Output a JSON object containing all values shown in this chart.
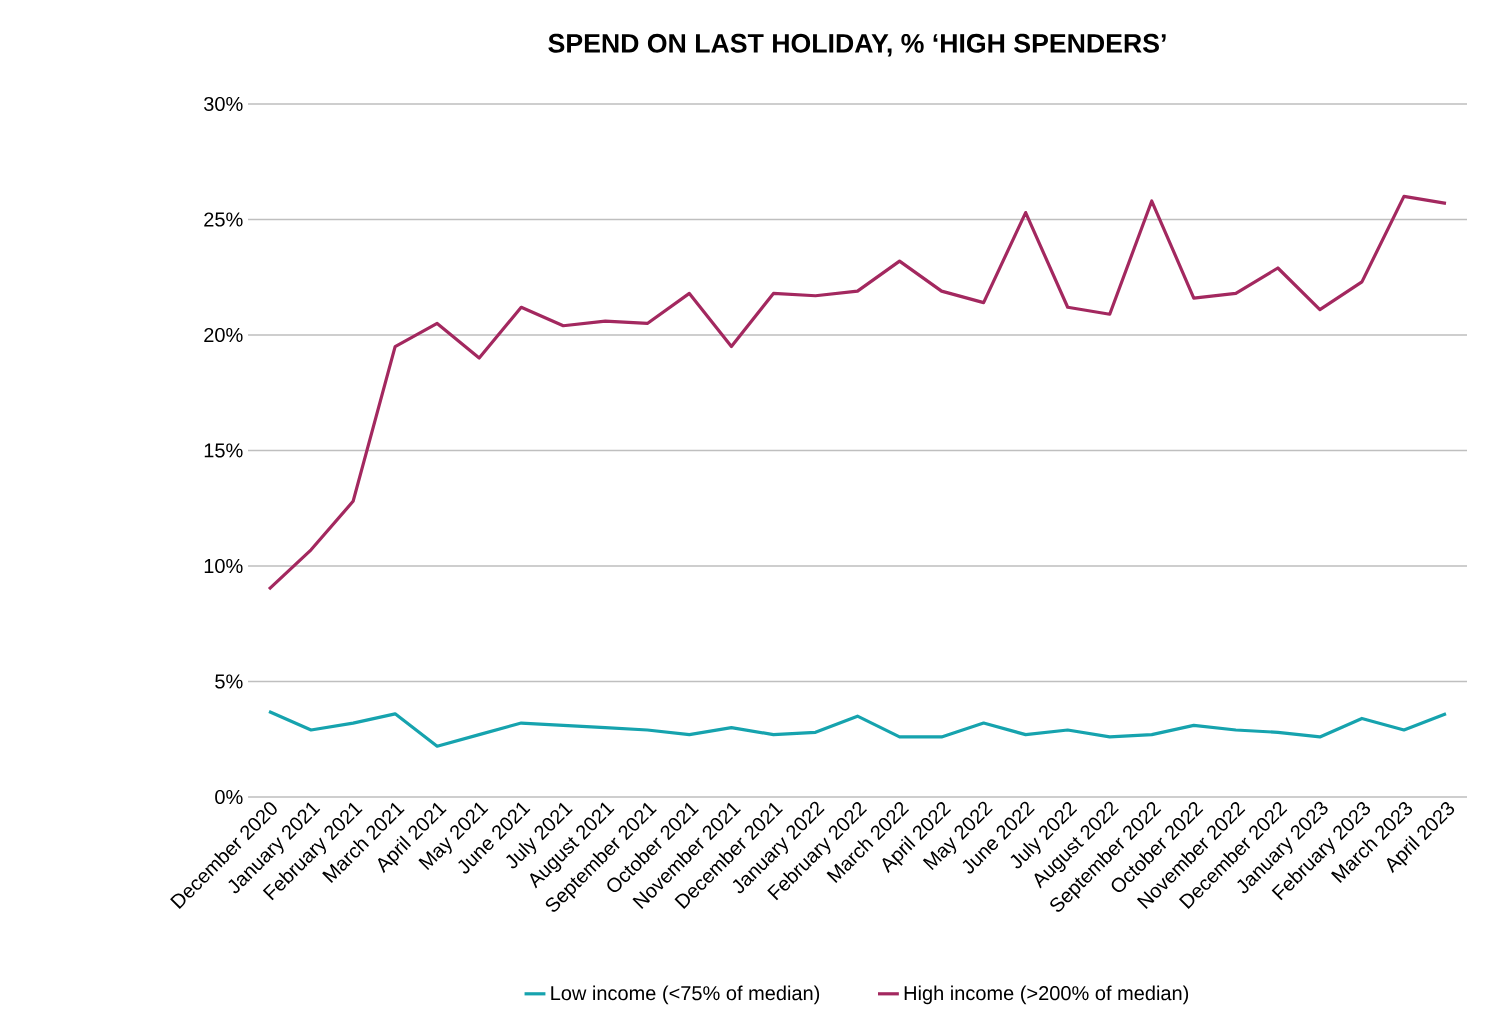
{
  "chart_data": {
    "type": "line",
    "title": "SPEND ON LAST HOLIDAY, % ‘HIGH SPENDERS’",
    "categories": [
      "December 2020",
      "January 2021",
      "February 2021",
      "March 2021",
      "April 2021",
      "May 2021",
      "June 2021",
      "July 2021",
      "August 2021",
      "September 2021",
      "October 2021",
      "November 2021",
      "December 2021",
      "January 2022",
      "February 2022",
      "March 2022",
      "April 2022",
      "May 2022",
      "June 2022",
      "July 2022",
      "August 2022",
      "September 2022",
      "October 2022",
      "November 2022",
      "December 2022",
      "January 2023",
      "February 2023",
      "March 2023",
      "April 2023"
    ],
    "series": [
      {
        "name": "Low income (<75% of median)",
        "color": "#16a3ae",
        "values": [
          3.7,
          2.9,
          3.2,
          3.6,
          2.2,
          2.7,
          3.2,
          3.1,
          3.0,
          2.9,
          2.7,
          3.0,
          2.7,
          2.8,
          3.5,
          2.6,
          2.6,
          3.2,
          2.7,
          2.9,
          2.6,
          2.7,
          3.1,
          2.9,
          2.8,
          2.6,
          3.4,
          2.9,
          3.6
        ]
      },
      {
        "name": "High income (>200% of median)",
        "color": "#a3285f",
        "values": [
          9.0,
          10.7,
          12.8,
          19.5,
          20.5,
          19.0,
          21.2,
          20.4,
          20.6,
          20.5,
          21.8,
          19.5,
          21.8,
          21.7,
          21.9,
          23.2,
          21.9,
          21.4,
          25.3,
          21.2,
          20.9,
          25.8,
          21.6,
          21.8,
          22.9,
          21.1,
          22.3,
          26.0,
          25.7
        ]
      }
    ],
    "ylim": [
      0,
      30
    ],
    "yticks": [
      {
        "value": 0,
        "label": "0%"
      },
      {
        "value": 5,
        "label": "5%"
      },
      {
        "value": 10,
        "label": "10%"
      },
      {
        "value": 15,
        "label": "15%"
      },
      {
        "value": 20,
        "label": "20%"
      },
      {
        "value": 25,
        "label": "25%"
      },
      {
        "value": 30,
        "label": "30%"
      }
    ],
    "grid": "y",
    "legend": "bottom"
  }
}
